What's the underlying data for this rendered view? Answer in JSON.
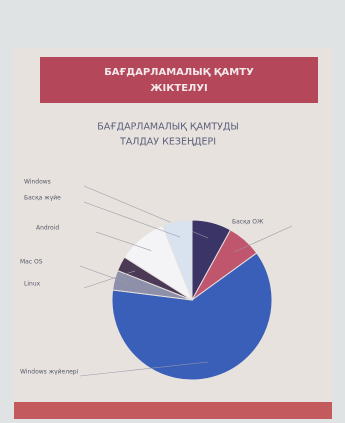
{
  "header": {
    "title_lines": [
      "БАҒДАРЛАМАЛЫҚ ҚАМТУ",
      "ЖІКТЕЛУІ"
    ]
  },
  "chart_data": {
    "type": "pie",
    "title_lines": [
      "БАҒДАРЛАМАЛЫҚ ҚАМТУДЫ",
      "ТАЛДАУ КЕЗЕҢДЕРІ"
    ],
    "categories": [
      "Windows",
      "Басқа ОЖ",
      "Windows жүйелері",
      "Mac OS",
      "Linux",
      "Android",
      "Басқа жүйе"
    ],
    "values": [
      8,
      7,
      62,
      4,
      3,
      10,
      6
    ],
    "colors": [
      "#3a3566",
      "#c0566e",
      "#3a5fb8",
      "#8e8fa8",
      "#4a3a55",
      "#f4f4f6",
      "#d9e2ef"
    ]
  }
}
